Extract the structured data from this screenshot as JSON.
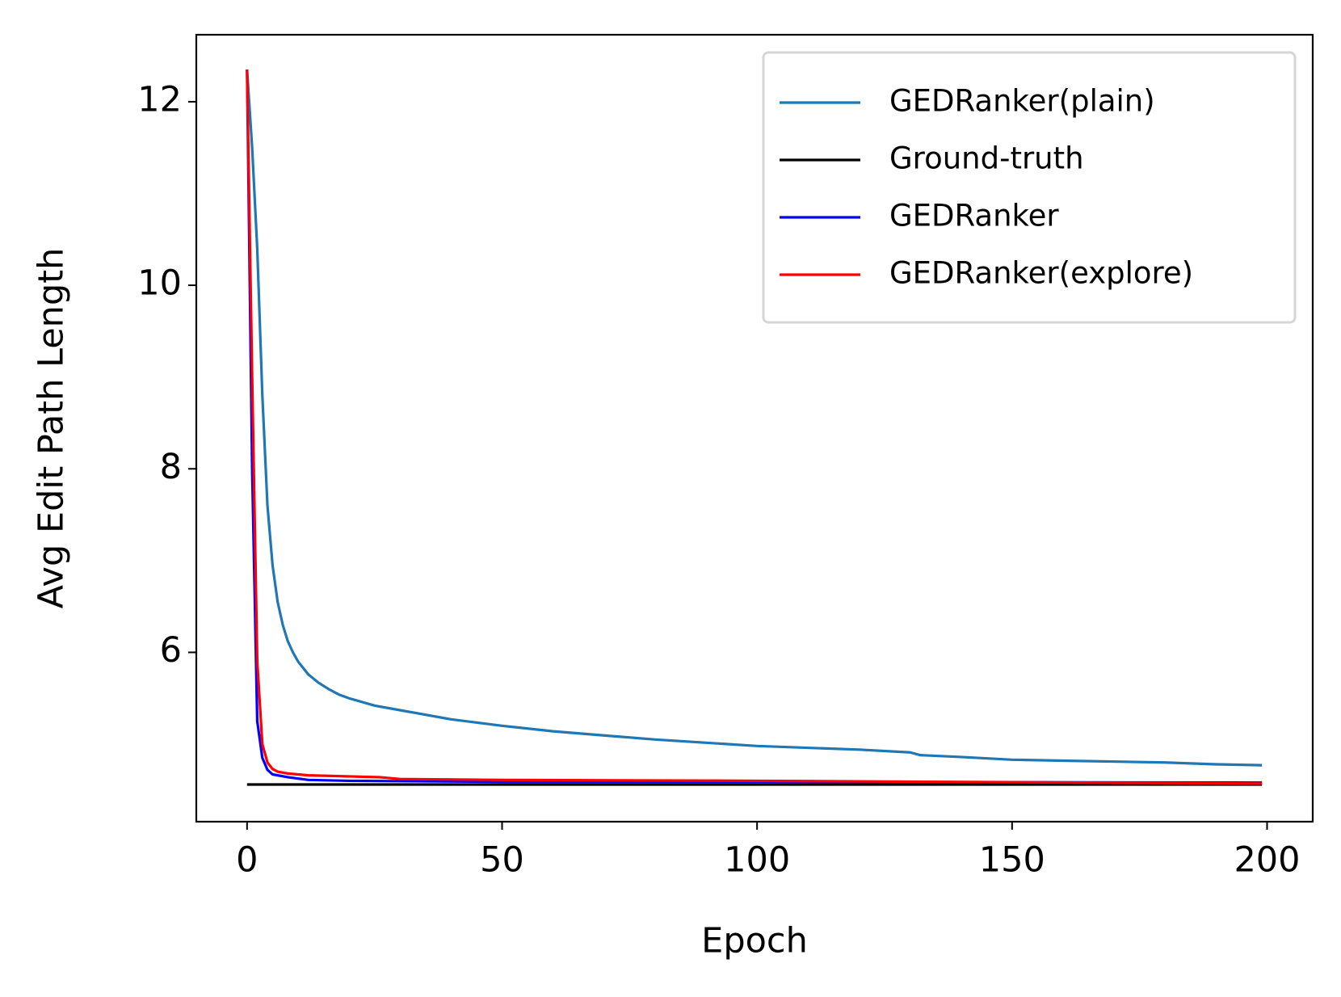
{
  "chart_data": {
    "type": "line",
    "xlabel": "Epoch",
    "ylabel": "Avg Edit Path Length",
    "xlim": [
      -9.95,
      208.95
    ],
    "ylim": [
      4.155,
      12.73
    ],
    "xticks": [
      0,
      50,
      100,
      150,
      200
    ],
    "yticks": [
      6,
      8,
      10,
      12
    ],
    "legend": "upper right",
    "series": [
      {
        "name": "GEDRanker(plain)",
        "color": "#1f77b4",
        "x": [
          0,
          1,
          2,
          3,
          4,
          5,
          6,
          7,
          8,
          9,
          10,
          12,
          14,
          16,
          18,
          20,
          25,
          30,
          40,
          50,
          60,
          80,
          100,
          120,
          130,
          132,
          140,
          150,
          160,
          180,
          190,
          199
        ],
        "values": [
          12.35,
          11.5,
          10.4,
          8.8,
          7.6,
          6.95,
          6.55,
          6.3,
          6.12,
          6.0,
          5.9,
          5.76,
          5.67,
          5.6,
          5.54,
          5.5,
          5.42,
          5.37,
          5.27,
          5.2,
          5.14,
          5.05,
          4.98,
          4.94,
          4.91,
          4.88,
          4.86,
          4.83,
          4.82,
          4.8,
          4.78,
          4.77
        ]
      },
      {
        "name": "Ground-truth",
        "color": "#000000",
        "x": [
          0,
          199
        ],
        "values": [
          4.56,
          4.56
        ]
      },
      {
        "name": "GEDRanker",
        "color": "#0000ff",
        "x": [
          0,
          1,
          2,
          3,
          4,
          5,
          8,
          12,
          20,
          50,
          100,
          199
        ],
        "values": [
          12.35,
          8,
          5.25,
          4.85,
          4.72,
          4.67,
          4.64,
          4.61,
          4.6,
          4.59,
          4.59,
          4.58
        ]
      },
      {
        "name": "GEDRanker(explore)",
        "color": "#ff0000",
        "x": [
          0,
          1,
          2,
          3,
          4,
          5,
          6,
          8,
          12,
          26,
          30,
          50,
          100,
          199
        ],
        "values": [
          12.35,
          9,
          5.9,
          5.0,
          4.8,
          4.73,
          4.7,
          4.68,
          4.66,
          4.64,
          4.62,
          4.61,
          4.6,
          4.57
        ]
      }
    ]
  }
}
